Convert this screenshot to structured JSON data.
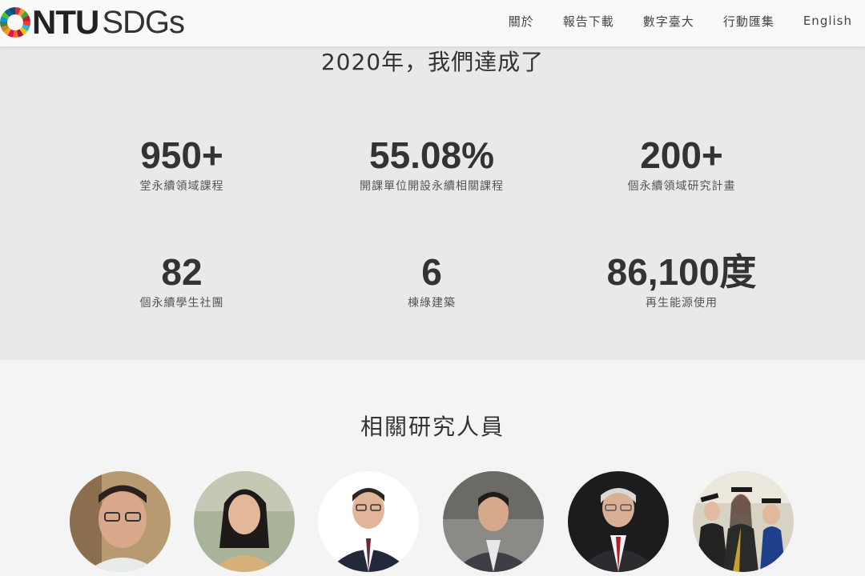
{
  "header": {
    "logo_ntu": "NTU",
    "logo_sdgs": "SDGs",
    "nav": [
      "關於",
      "報告下載",
      "數字臺大",
      "行動匯集",
      "English"
    ]
  },
  "stats": {
    "title": "2020年，我們達成了",
    "items": [
      {
        "value": "950+",
        "label": "堂永續領域課程"
      },
      {
        "value": "55.08%",
        "label": "開課單位開設永續相關課程"
      },
      {
        "value": "200+",
        "label": "個永續領域研究計畫"
      },
      {
        "value": "82",
        "label": "個永續學生社團"
      },
      {
        "value": "6",
        "label": "棟綠建築"
      },
      {
        "value": "86,100度",
        "label": "再生能源使用"
      }
    ]
  },
  "researchers": {
    "title": "相關研究人員",
    "avatars": [
      "researcher-photo-1",
      "researcher-photo-2",
      "researcher-photo-3",
      "researcher-photo-4",
      "researcher-photo-5",
      "researcher-photo-6"
    ]
  },
  "colors": {
    "stats_bg": "#e9e9e9",
    "page_bg": "#f4f4f4",
    "text": "#333333"
  }
}
